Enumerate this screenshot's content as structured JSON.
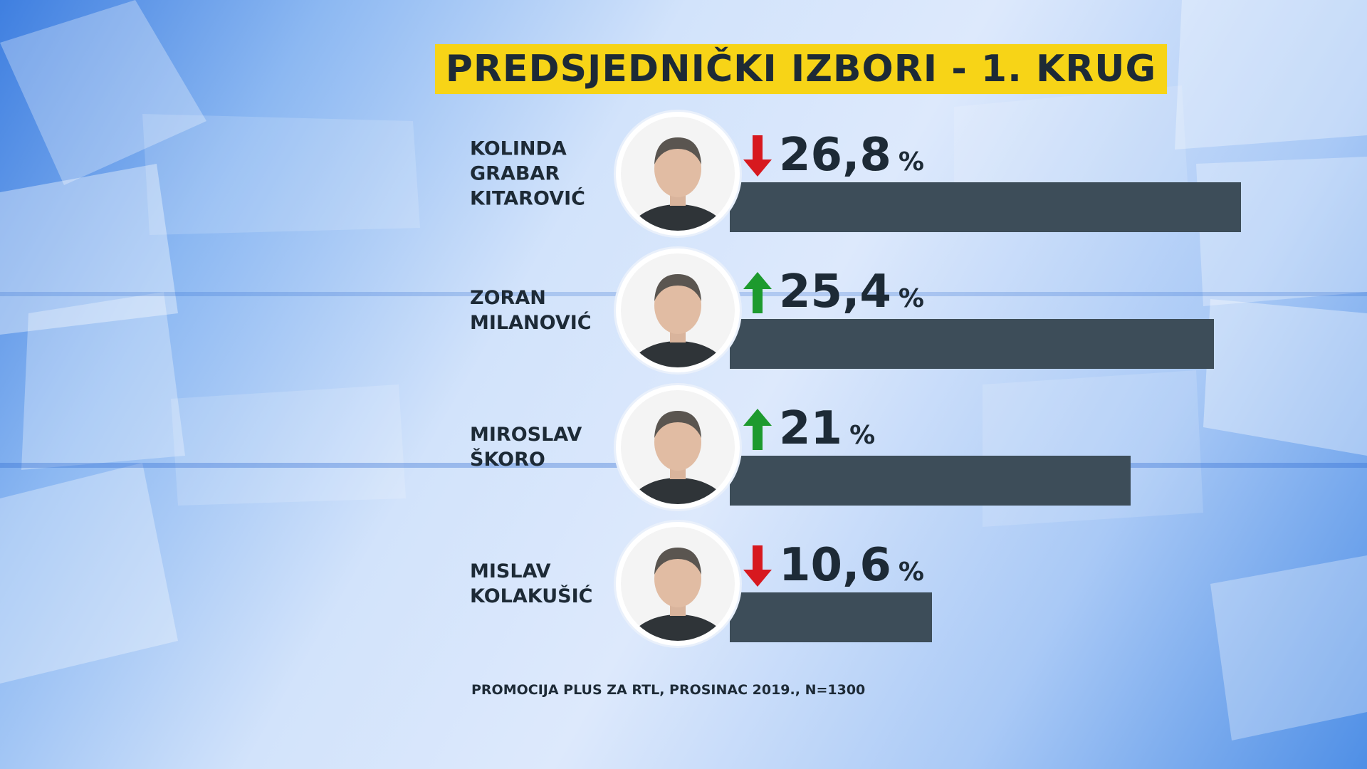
{
  "title": "PREDSJEDNIČKI IZBORI - 1. KRUG",
  "source": "PROMOCIJA PLUS ZA RTL, PROSINAC 2019., N=1300",
  "colors": {
    "title_bg": "#f7d417",
    "bar": "#3d4d59",
    "text": "#1d2a36",
    "trend_up": "#1d9a2e",
    "trend_down": "#d7191f"
  },
  "chart_data": {
    "type": "bar",
    "orientation": "horizontal",
    "title": "PREDSJEDNIČKI IZBORI - 1. KRUG",
    "unit": "%",
    "categories": [
      "KOLINDA\nGRABAR\nKITAROVIĆ",
      "ZORAN\nMILANOVIĆ",
      "MIROSLAV\nŠKORO",
      "MISLAV\nKOLAKUŠIĆ"
    ],
    "values": [
      26.8,
      25.4,
      21,
      10.6
    ],
    "value_labels": [
      "26,8",
      "25,4",
      "21",
      "10,6"
    ],
    "trends": [
      "down",
      "up",
      "up",
      "down"
    ],
    "avatar_icons": [
      "person-photo-icon",
      "person-photo-icon",
      "person-photo-icon",
      "person-photo-icon"
    ],
    "grid": false,
    "legend": "none"
  }
}
